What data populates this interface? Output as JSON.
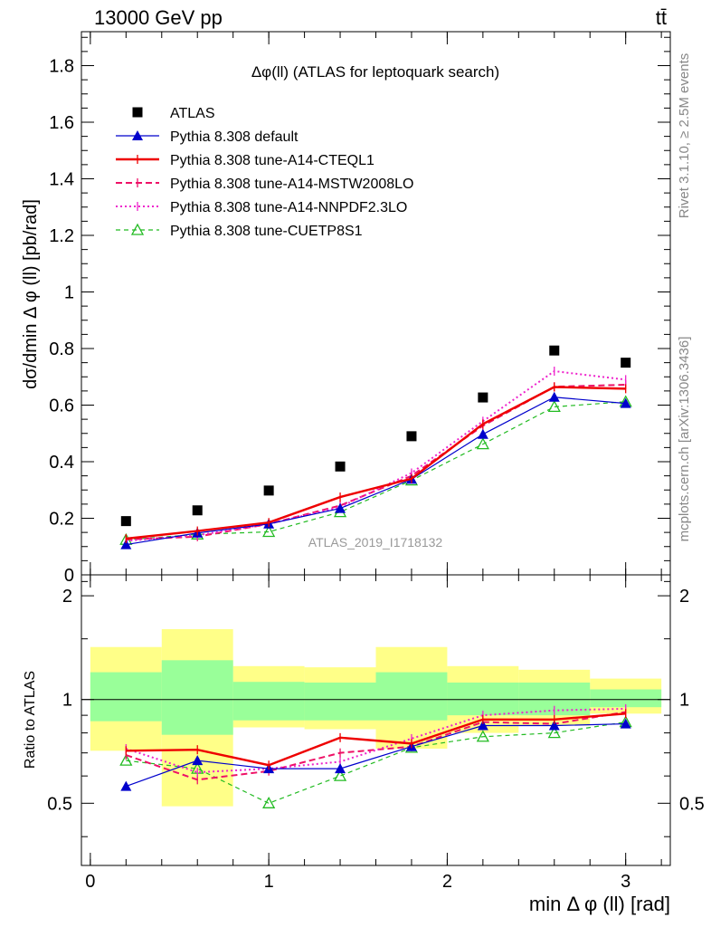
{
  "header": {
    "energy_label": "13000 GeV pp",
    "process_label": "tt̄",
    "plot_title": "Δφ(ll) (ATLAS for leptoquark search)",
    "analysis_id": "ATLAS_2019_I1718132",
    "side_label_rivet": "Rivet 3.1.10, ≥ 2.5M events",
    "side_label_source": "mcplots.cern.ch [arXiv:1306.3436]"
  },
  "chart_data": [
    {
      "panel": "main",
      "type": "line",
      "ylabel": "dσ/dmin Δ φ (ll) [pb/rad]",
      "xlim": [
        -0.05,
        3.25
      ],
      "ylim": [
        0,
        1.92
      ],
      "x_ticks": [
        0,
        1,
        2,
        3
      ],
      "y_ticks": [
        0,
        0.2,
        0.4,
        0.6,
        0.8,
        1,
        1.2,
        1.4,
        1.6,
        1.8
      ],
      "y_tick_labels": [
        "0",
        "0.2",
        "0.4",
        "0.6",
        "0.8",
        "1",
        "1.2",
        "1.4",
        "1.6",
        "1.8"
      ],
      "x": [
        0.2,
        0.6,
        1.0,
        1.4,
        1.8,
        2.2,
        2.6,
        3.0
      ],
      "series": [
        {
          "name": "ATLAS",
          "style": "data",
          "color": "#000000",
          "values": [
            0.19,
            0.228,
            0.298,
            0.383,
            0.49,
            0.627,
            0.793,
            0.75
          ]
        },
        {
          "name": "Pythia 8.308 default",
          "style": "solid-triangle",
          "color": "#0000cc",
          "values": [
            0.107,
            0.148,
            0.18,
            0.235,
            0.338,
            0.497,
            0.628,
            0.606
          ]
        },
        {
          "name": "Pythia 8.308 tune-A14-CTEQL1",
          "style": "solid-thick",
          "color": "#ee0000",
          "values": [
            0.128,
            0.155,
            0.185,
            0.275,
            0.34,
            0.533,
            0.664,
            0.658
          ]
        },
        {
          "name": "Pythia 8.308 tune-A14-MSTW2008LO",
          "style": "dashed",
          "color": "#ee1166",
          "values": [
            0.125,
            0.135,
            0.18,
            0.245,
            0.35,
            0.527,
            0.665,
            0.672
          ]
        },
        {
          "name": "Pythia 8.308 tune-A14-NNPDF2.3LO",
          "style": "dotted",
          "color": "#ee22cc",
          "values": [
            0.12,
            0.14,
            0.18,
            0.24,
            0.36,
            0.543,
            0.72,
            0.69
          ]
        },
        {
          "name": "Pythia 8.308 tune-CUETP8S1",
          "style": "dashed-open-triangle",
          "color": "#22bb22",
          "values": [
            0.124,
            0.143,
            0.152,
            0.222,
            0.334,
            0.462,
            0.594,
            0.612
          ]
        }
      ]
    },
    {
      "panel": "ratio",
      "type": "line",
      "xlabel": "min Δ φ (ll) [rad]",
      "ylabel": "Ratio to ATLAS",
      "xlim": [
        -0.05,
        3.25
      ],
      "ylim": [
        0.33,
        2.3
      ],
      "y_scale": "log",
      "x_ticks": [
        0,
        1,
        2,
        3
      ],
      "x_tick_labels": [
        "0",
        "1",
        "2",
        "3"
      ],
      "y_ticks": [
        0.5,
        1,
        2
      ],
      "y_tick_labels": [
        "0.5",
        "1",
        "2"
      ],
      "bin_edges": [
        0,
        0.4,
        0.8,
        1.2,
        1.6,
        2.0,
        2.4,
        2.8,
        3.2
      ],
      "band_inner": {
        "color": "#99ff99",
        "low": [
          0.865,
          0.79,
          0.87,
          0.87,
          0.87,
          0.9,
          0.9,
          0.95
        ],
        "high": [
          1.2,
          1.3,
          1.125,
          1.12,
          1.2,
          1.12,
          1.12,
          1.07
        ]
      },
      "band_outer": {
        "color": "#ffff88",
        "low": [
          0.71,
          0.49,
          0.83,
          0.82,
          0.72,
          0.8,
          0.84,
          0.91
        ],
        "high": [
          1.42,
          1.6,
          1.25,
          1.24,
          1.42,
          1.25,
          1.22,
          1.15
        ]
      },
      "x": [
        0.2,
        0.6,
        1.0,
        1.4,
        1.8,
        2.2,
        2.6,
        3.0
      ],
      "series": [
        {
          "name": "Pythia 8.308 default",
          "color": "#0000cc",
          "values": [
            0.56,
            0.665,
            0.63,
            0.63,
            0.73,
            0.84,
            0.84,
            0.85
          ]
        },
        {
          "name": "Pythia 8.308 tune-A14-CTEQL1",
          "color": "#ee0000",
          "values": [
            0.71,
            0.715,
            0.645,
            0.775,
            0.745,
            0.875,
            0.875,
            0.91
          ]
        },
        {
          "name": "Pythia 8.308 tune-A14-MSTW2008LO",
          "color": "#ee1166",
          "values": [
            0.69,
            0.585,
            0.62,
            0.7,
            0.73,
            0.86,
            0.85,
            0.92
          ]
        },
        {
          "name": "Pythia 8.308 tune-A14-NNPDF2.3LO",
          "color": "#ee22cc",
          "values": [
            0.72,
            0.615,
            0.63,
            0.66,
            0.77,
            0.9,
            0.93,
            0.94
          ]
        },
        {
          "name": "Pythia 8.308 tune-CUETP8S1",
          "color": "#22bb22",
          "values": [
            0.665,
            0.63,
            0.5,
            0.6,
            0.725,
            0.78,
            0.8,
            0.86
          ]
        }
      ]
    }
  ]
}
